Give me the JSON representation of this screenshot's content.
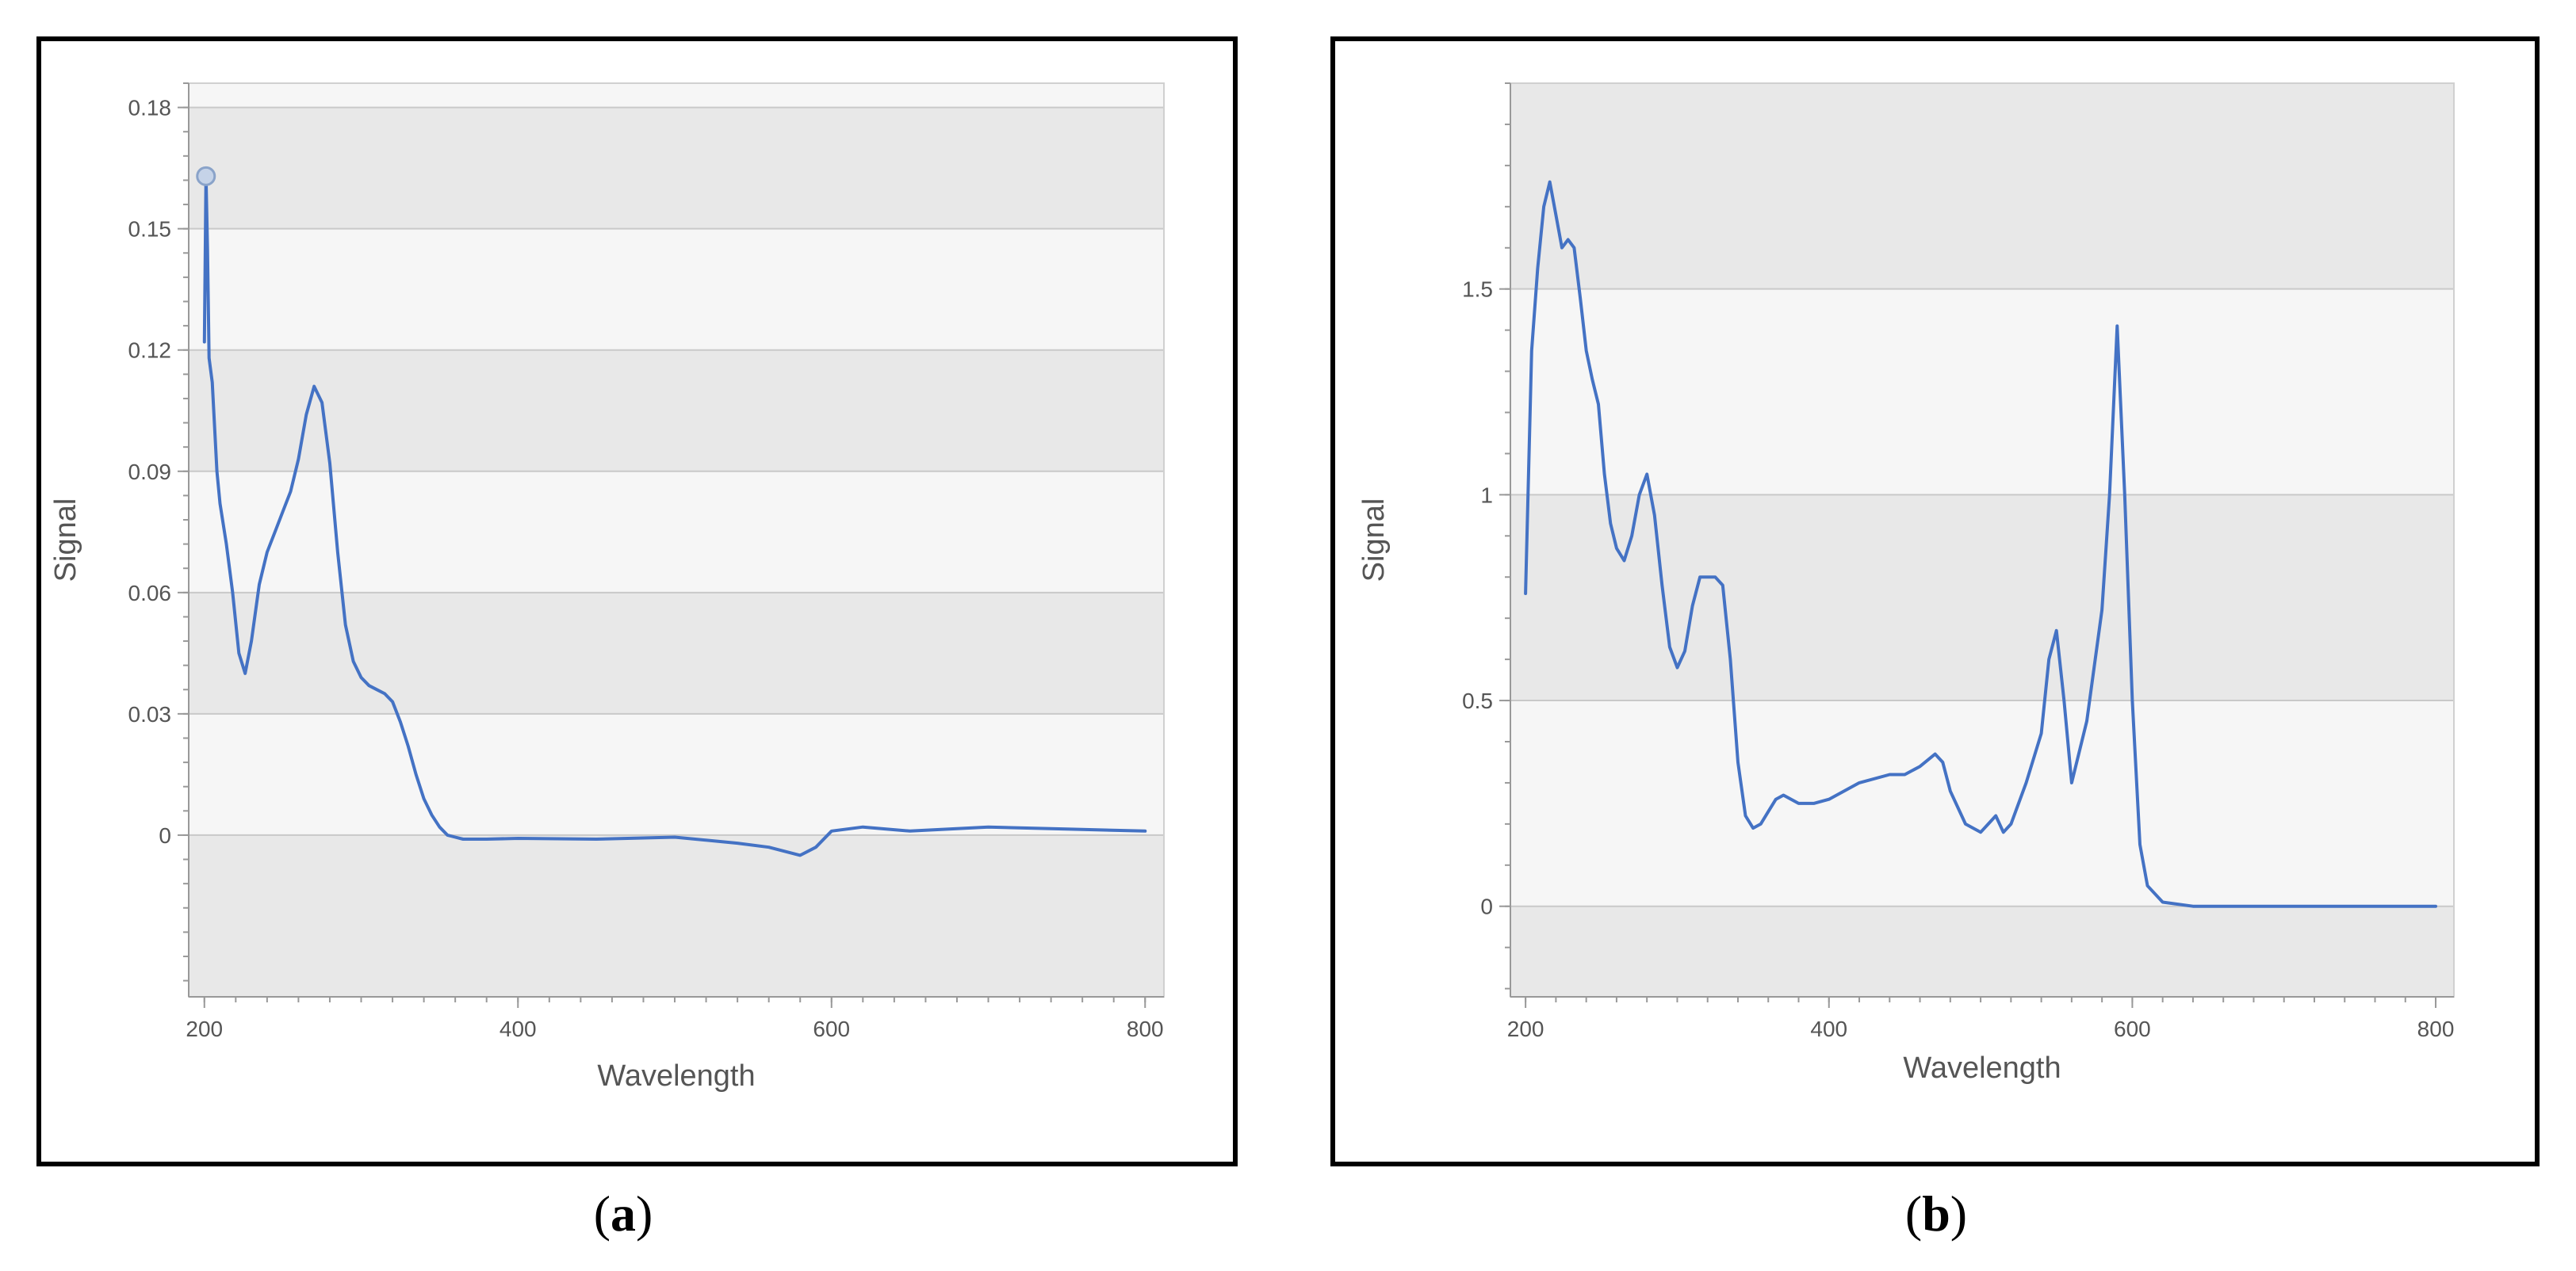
{
  "panels": [
    {
      "caption": "a",
      "chart_data": {
        "type": "line",
        "xlabel": "Wavelength",
        "ylabel": "Signal",
        "xlim": [
          190,
          812
        ],
        "ylim": [
          -0.04,
          0.186
        ],
        "xticks": [
          200,
          400,
          600,
          800
        ],
        "xtick_labels": [
          "200",
          "400",
          "600",
          "800"
        ],
        "yticks": [
          0,
          0.03,
          0.06,
          0.09,
          0.12,
          0.15,
          0.18
        ],
        "ytick_labels": [
          "0",
          "0.03",
          "0.06",
          "0.09",
          "0.12",
          "0.15",
          "0.18"
        ],
        "grid": "horizontal bands",
        "legend": "none",
        "marker_point": {
          "x": 201,
          "y": 0.163
        },
        "series": [
          {
            "x": [
              200,
              201,
              202,
              203,
              205,
              208,
              210,
              214,
              218,
              222,
              226,
              230,
              235,
              240,
              245,
              250,
              255,
              260,
              265,
              270,
              275,
              280,
              285,
              290,
              295,
              300,
              305,
              310,
              315,
              320,
              325,
              330,
              335,
              340,
              345,
              350,
              355,
              360,
              365,
              370,
              380,
              400,
              450,
              500,
              540,
              560,
              580,
              590,
              600,
              620,
              650,
              700,
              750,
              800
            ],
            "y": [
              0.122,
              0.163,
              0.145,
              0.118,
              0.112,
              0.09,
              0.082,
              0.072,
              0.06,
              0.045,
              0.04,
              0.048,
              0.062,
              0.07,
              0.075,
              0.08,
              0.085,
              0.093,
              0.104,
              0.111,
              0.107,
              0.092,
              0.07,
              0.052,
              0.043,
              0.039,
              0.037,
              0.036,
              0.035,
              0.033,
              0.028,
              0.022,
              0.015,
              0.009,
              0.005,
              0.002,
              0.0,
              -0.0005,
              -0.001,
              -0.001,
              -0.001,
              -0.0008,
              -0.001,
              -0.0005,
              -0.002,
              -0.003,
              -0.005,
              -0.003,
              0.001,
              0.002,
              0.001,
              0.002,
              0.0015,
              0.001
            ],
            "color": "#4472c4"
          }
        ]
      }
    },
    {
      "caption": "b",
      "chart_data": {
        "type": "line",
        "xlabel": "Wavelength",
        "ylabel": "Signal",
        "xlim": [
          190,
          812
        ],
        "ylim": [
          -0.22,
          2.0
        ],
        "xticks": [
          200,
          400,
          600,
          800
        ],
        "xtick_labels": [
          "200",
          "400",
          "600",
          "800"
        ],
        "yticks": [
          0,
          0.5,
          1,
          1.5
        ],
        "ytick_labels": [
          "0",
          "0.5",
          "1",
          "1.5"
        ],
        "grid": "horizontal bands",
        "legend": "none",
        "series": [
          {
            "x": [
              200,
              204,
              208,
              212,
              216,
              220,
              224,
              228,
              232,
              236,
              240,
              244,
              248,
              252,
              256,
              260,
              265,
              270,
              275,
              280,
              285,
              290,
              295,
              300,
              305,
              310,
              315,
              320,
              325,
              330,
              335,
              340,
              345,
              350,
              355,
              360,
              365,
              370,
              380,
              390,
              400,
              420,
              440,
              450,
              460,
              470,
              475,
              480,
              490,
              500,
              505,
              510,
              515,
              520,
              530,
              540,
              545,
              550,
              555,
              560,
              570,
              580,
              585,
              590,
              595,
              600,
              605,
              610,
              620,
              640,
              700,
              800
            ],
            "y": [
              0.76,
              1.35,
              1.55,
              1.7,
              1.76,
              1.68,
              1.6,
              1.62,
              1.6,
              1.48,
              1.35,
              1.28,
              1.22,
              1.05,
              0.93,
              0.87,
              0.84,
              0.9,
              1.0,
              1.05,
              0.95,
              0.78,
              0.63,
              0.58,
              0.62,
              0.73,
              0.8,
              0.8,
              0.8,
              0.78,
              0.6,
              0.35,
              0.22,
              0.19,
              0.2,
              0.23,
              0.26,
              0.27,
              0.25,
              0.25,
              0.26,
              0.3,
              0.32,
              0.32,
              0.34,
              0.37,
              0.35,
              0.28,
              0.2,
              0.18,
              0.2,
              0.22,
              0.18,
              0.2,
              0.3,
              0.42,
              0.6,
              0.67,
              0.5,
              0.3,
              0.45,
              0.72,
              1.0,
              1.41,
              1.0,
              0.5,
              0.15,
              0.05,
              0.01,
              0.0,
              0.0,
              0.0
            ],
            "color": "#4472c4"
          }
        ]
      }
    }
  ],
  "style": {
    "line_color": "#4472c4",
    "band_dark": "#e8e8e8",
    "band_light": "#f6f6f6",
    "axis_color": "#999999",
    "frame_color": "#000000"
  }
}
